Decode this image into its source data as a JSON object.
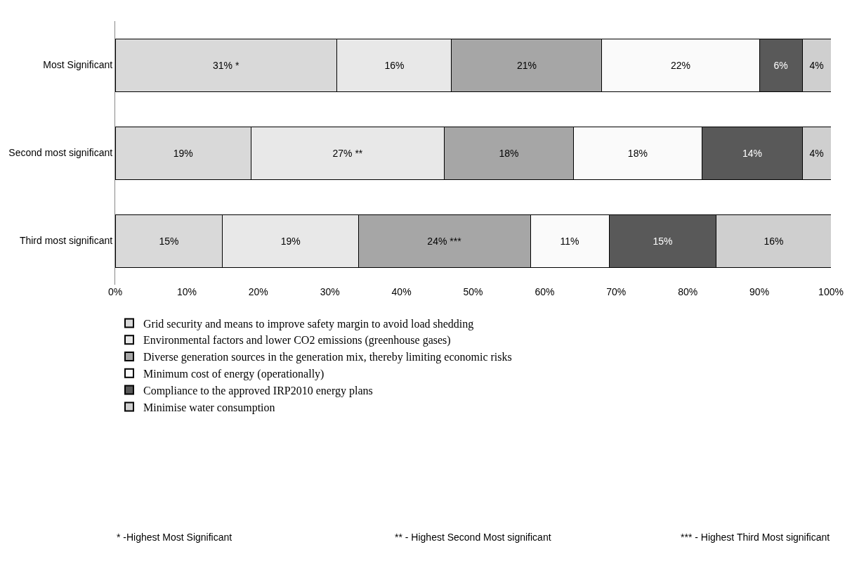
{
  "chart_data": {
    "type": "bar",
    "orientation": "horizontal",
    "stacked": true,
    "categories": [
      "Most Significant",
      "Second most significant",
      "Third most significant"
    ],
    "series": [
      {
        "name": "Grid security and means to improve safety margin to avoid load shedding",
        "color": "#d9d9d9",
        "values": [
          31,
          19,
          15
        ],
        "value_labels": [
          "31% *",
          "19%",
          "15%"
        ]
      },
      {
        "name": "Environmental factors and lower CO2 emissions (greenhouse gases)",
        "color": "#e8e8e8",
        "values": [
          16,
          27,
          19
        ],
        "value_labels": [
          "16%",
          "27% **",
          "19%"
        ]
      },
      {
        "name": "Diverse generation sources in the generation mix, thereby limiting economic risks",
        "color": "#a6a6a6",
        "values": [
          21,
          18,
          24
        ],
        "value_labels": [
          "21%",
          "18%",
          "24% ***"
        ]
      },
      {
        "name": "Minimum cost of energy (operationally)",
        "color": "#fafafa",
        "values": [
          22,
          18,
          11
        ],
        "value_labels": [
          "22%",
          "18%",
          "11%"
        ]
      },
      {
        "name": "Compliance to the approved IRP2010 energy plans",
        "color": "#595959",
        "values": [
          6,
          14,
          15
        ],
        "value_labels": [
          "6%",
          "14%",
          "15%"
        ]
      },
      {
        "name": "Minimise water consumption",
        "color": "#cfcfcf",
        "values": [
          4,
          4,
          16
        ],
        "value_labels": [
          "4%",
          "4%",
          "16%"
        ]
      }
    ],
    "xlim": [
      0,
      100
    ],
    "xticks": [
      {
        "value": 0,
        "label": "0%"
      },
      {
        "value": 10,
        "label": "10%"
      },
      {
        "value": 20,
        "label": "20%"
      },
      {
        "value": 30,
        "label": "30%"
      },
      {
        "value": 40,
        "label": "40%"
      },
      {
        "value": 50,
        "label": "50%"
      },
      {
        "value": 60,
        "label": "60%"
      },
      {
        "value": 70,
        "label": "70%"
      },
      {
        "value": 80,
        "label": "80%"
      },
      {
        "value": 90,
        "label": "90%"
      },
      {
        "value": 100,
        "label": "100%"
      }
    ],
    "legend": "bottom",
    "annotations": [
      "* -Highest Most Significant",
      "** - Highest Second Most significant",
      "*** - Highest Third Most significant"
    ]
  }
}
